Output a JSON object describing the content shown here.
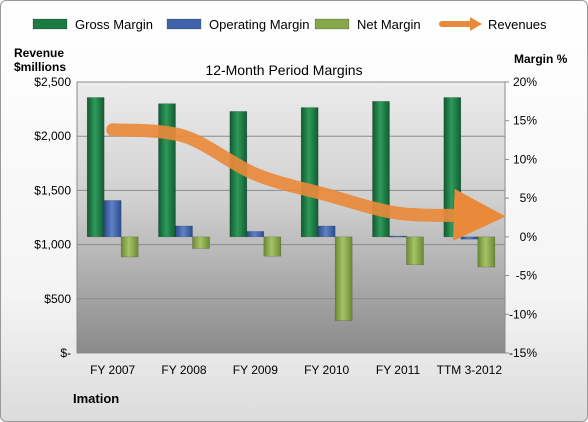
{
  "chart_data": {
    "type": "bar",
    "title": "12-Month Period Margins",
    "company": "Imation",
    "y_left_label": [
      "Revenue",
      "$millions"
    ],
    "y_right_label": "Margin %",
    "categories": [
      "FY 2007",
      "FY 2008",
      "FY 2009",
      "FY 2010",
      "FY 2011",
      "TTM 3-2012"
    ],
    "y_left_ticks": [
      "$2,500",
      "$2,000",
      "$1,500",
      "$1,000",
      "$500",
      "$-"
    ],
    "y_left_range": [
      0,
      2500
    ],
    "y_right_ticks": [
      "20%",
      "15%",
      "10%",
      "5%",
      "0%",
      "-5%",
      "-10%",
      "-15%"
    ],
    "y_right_range": [
      -15,
      20
    ],
    "legend_position": "top",
    "series": [
      {
        "name": "Gross Margin",
        "axis": "right",
        "kind": "bar",
        "color": "#1e7a45",
        "values": [
          18.0,
          17.2,
          16.2,
          16.7,
          17.5,
          18.0
        ]
      },
      {
        "name": "Operating Margin",
        "axis": "right",
        "kind": "bar",
        "color": "#3f63a8",
        "values": [
          4.7,
          1.4,
          0.7,
          1.4,
          0.1,
          -0.3
        ]
      },
      {
        "name": "Net Margin",
        "axis": "right",
        "kind": "bar",
        "color": "#86a84a",
        "values": [
          -2.6,
          -1.5,
          -2.5,
          -10.8,
          -3.6,
          -3.9
        ]
      },
      {
        "name": "Revenues",
        "axis": "left",
        "kind": "line",
        "color": "#e98a3b",
        "values": [
          2060,
          2000,
          1650,
          1460,
          1290,
          1270
        ]
      }
    ]
  }
}
